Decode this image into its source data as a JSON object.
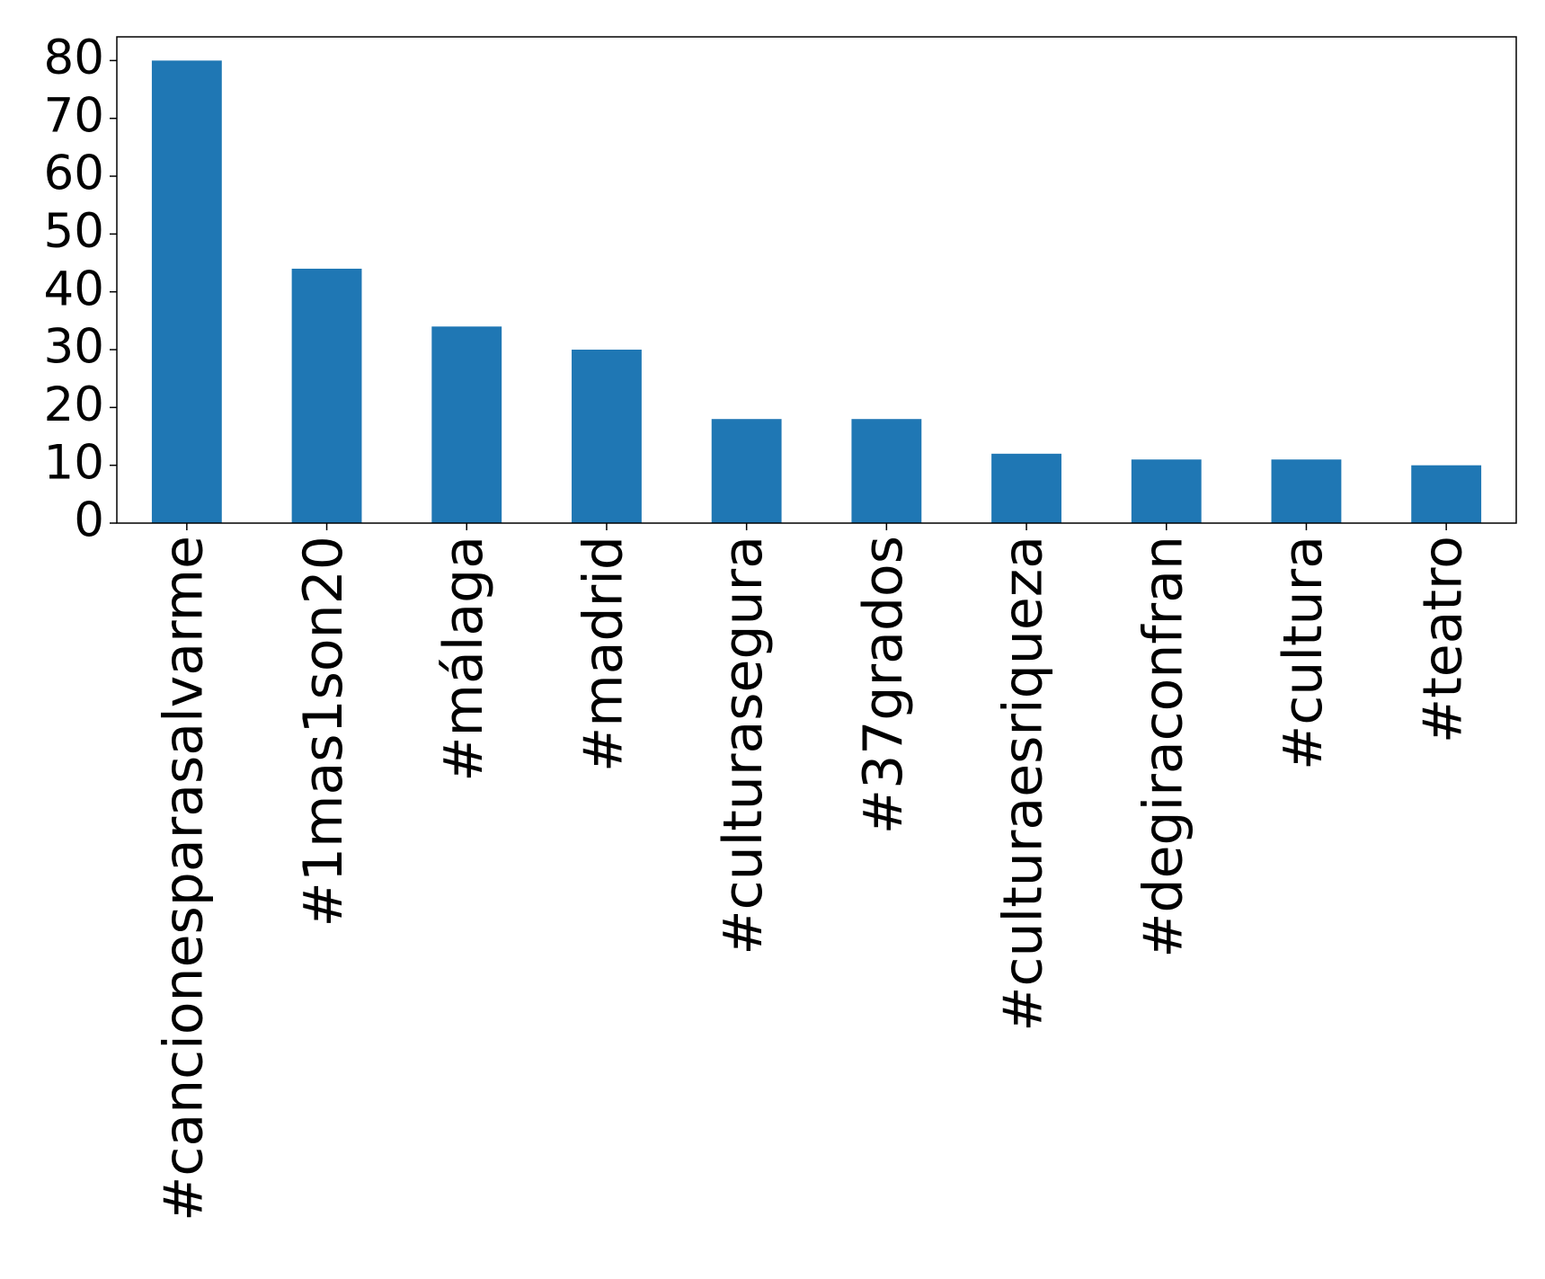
{
  "chart_data": {
    "type": "bar",
    "categories": [
      "#cancionesparasalvarme",
      "#1mas1son20",
      "#málaga",
      "#madrid",
      "#culturasegura",
      "#37grados",
      "#culturaesriqueza",
      "#degiraconfran",
      "#cultura",
      "#teatro"
    ],
    "values": [
      80,
      44,
      34,
      30,
      18,
      18,
      12,
      11,
      11,
      10
    ],
    "color": "#1f77b4",
    "ylim": [
      0,
      84.1
    ],
    "yticks": [
      0,
      10,
      20,
      30,
      40,
      50,
      60,
      70,
      80
    ],
    "grid": false
  }
}
